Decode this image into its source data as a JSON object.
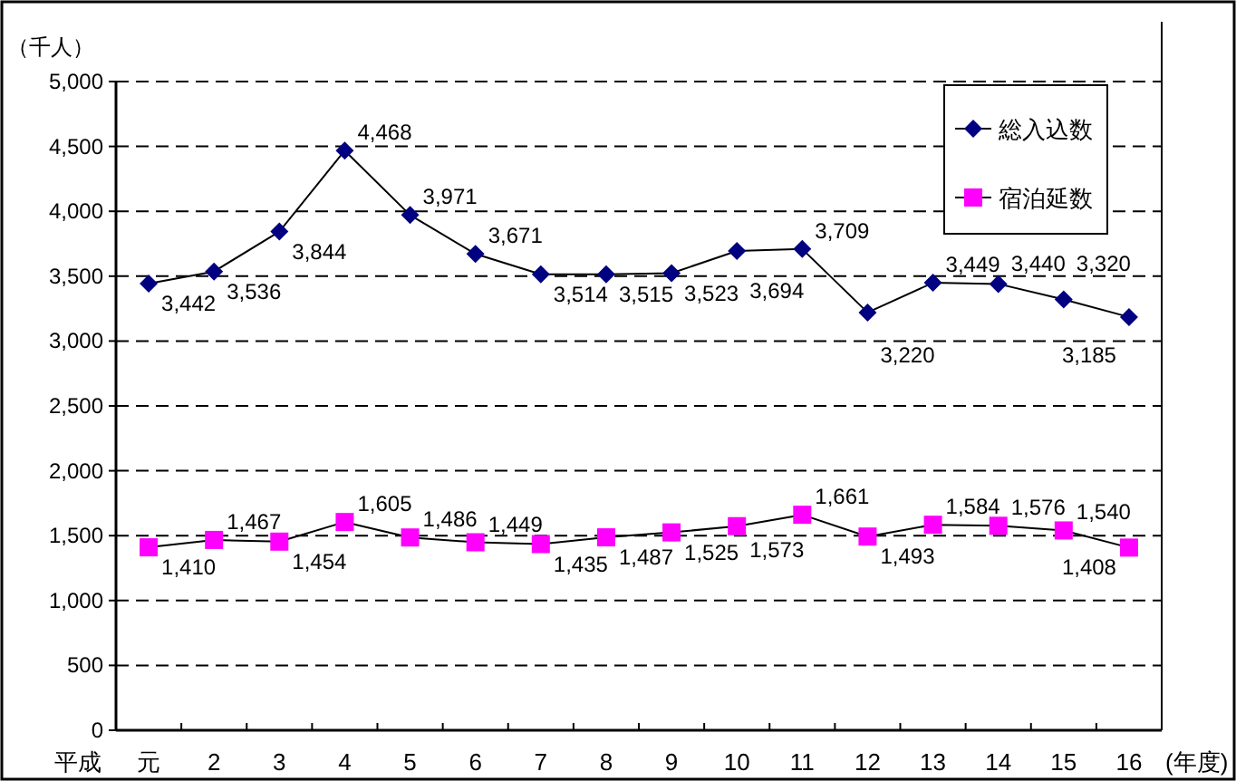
{
  "chart_data": {
    "type": "line",
    "ylabel": "（千人）",
    "xlabel": "(年度)",
    "annotations": [
      "平成"
    ],
    "categories": [
      "元",
      "2",
      "3",
      "4",
      "5",
      "6",
      "7",
      "8",
      "9",
      "10",
      "11",
      "12",
      "13",
      "14",
      "15",
      "16"
    ],
    "series": [
      {
        "name": "総入込数",
        "color": "#000080",
        "marker": "diamond",
        "values": [
          3442,
          3536,
          3844,
          4468,
          3971,
          3671,
          3514,
          3515,
          3523,
          3694,
          3709,
          3220,
          3449,
          3440,
          3320,
          3185
        ],
        "value_labels": [
          "3,442",
          "3,536",
          "3,844",
          "4,468",
          "3,971",
          "3,671",
          "3,514",
          "3,515",
          "3,523",
          "3,694",
          "3,709",
          "3,220",
          "3,449",
          "3,440",
          "3,320",
          "3,185"
        ]
      },
      {
        "name": "宿泊延数",
        "color": "#ff00ff",
        "marker": "square",
        "values": [
          1410,
          1467,
          1454,
          1605,
          1486,
          1449,
          1435,
          1487,
          1525,
          1573,
          1661,
          1493,
          1584,
          1576,
          1540,
          1408
        ],
        "value_labels": [
          "1,410",
          "1,467",
          "1,454",
          "1,605",
          "1,486",
          "1,449",
          "1,435",
          "1,487",
          "1,525",
          "1,573",
          "1,661",
          "1,493",
          "1,584",
          "1,576",
          "1,540",
          "1,408"
        ]
      }
    ],
    "ylim": [
      0,
      5000
    ],
    "yticks": [
      0,
      {
        "value": 500,
        "label": "500"
      },
      {
        "value": 1000,
        "label": "1,000"
      },
      {
        "value": 1500,
        "label": "1,500"
      },
      {
        "value": 2000,
        "label": "2,000"
      },
      {
        "value": 2500,
        "label": "2,500"
      },
      {
        "value": 3000,
        "label": "3,000"
      },
      {
        "value": 3500,
        "label": "3,500"
      },
      {
        "value": 4000,
        "label": "4,000"
      },
      {
        "value": 4500,
        "label": "4,500"
      },
      {
        "value": 5000,
        "label": "5,000"
      }
    ],
    "grid": "y",
    "legend": "top right",
    "line_style": "solid"
  }
}
